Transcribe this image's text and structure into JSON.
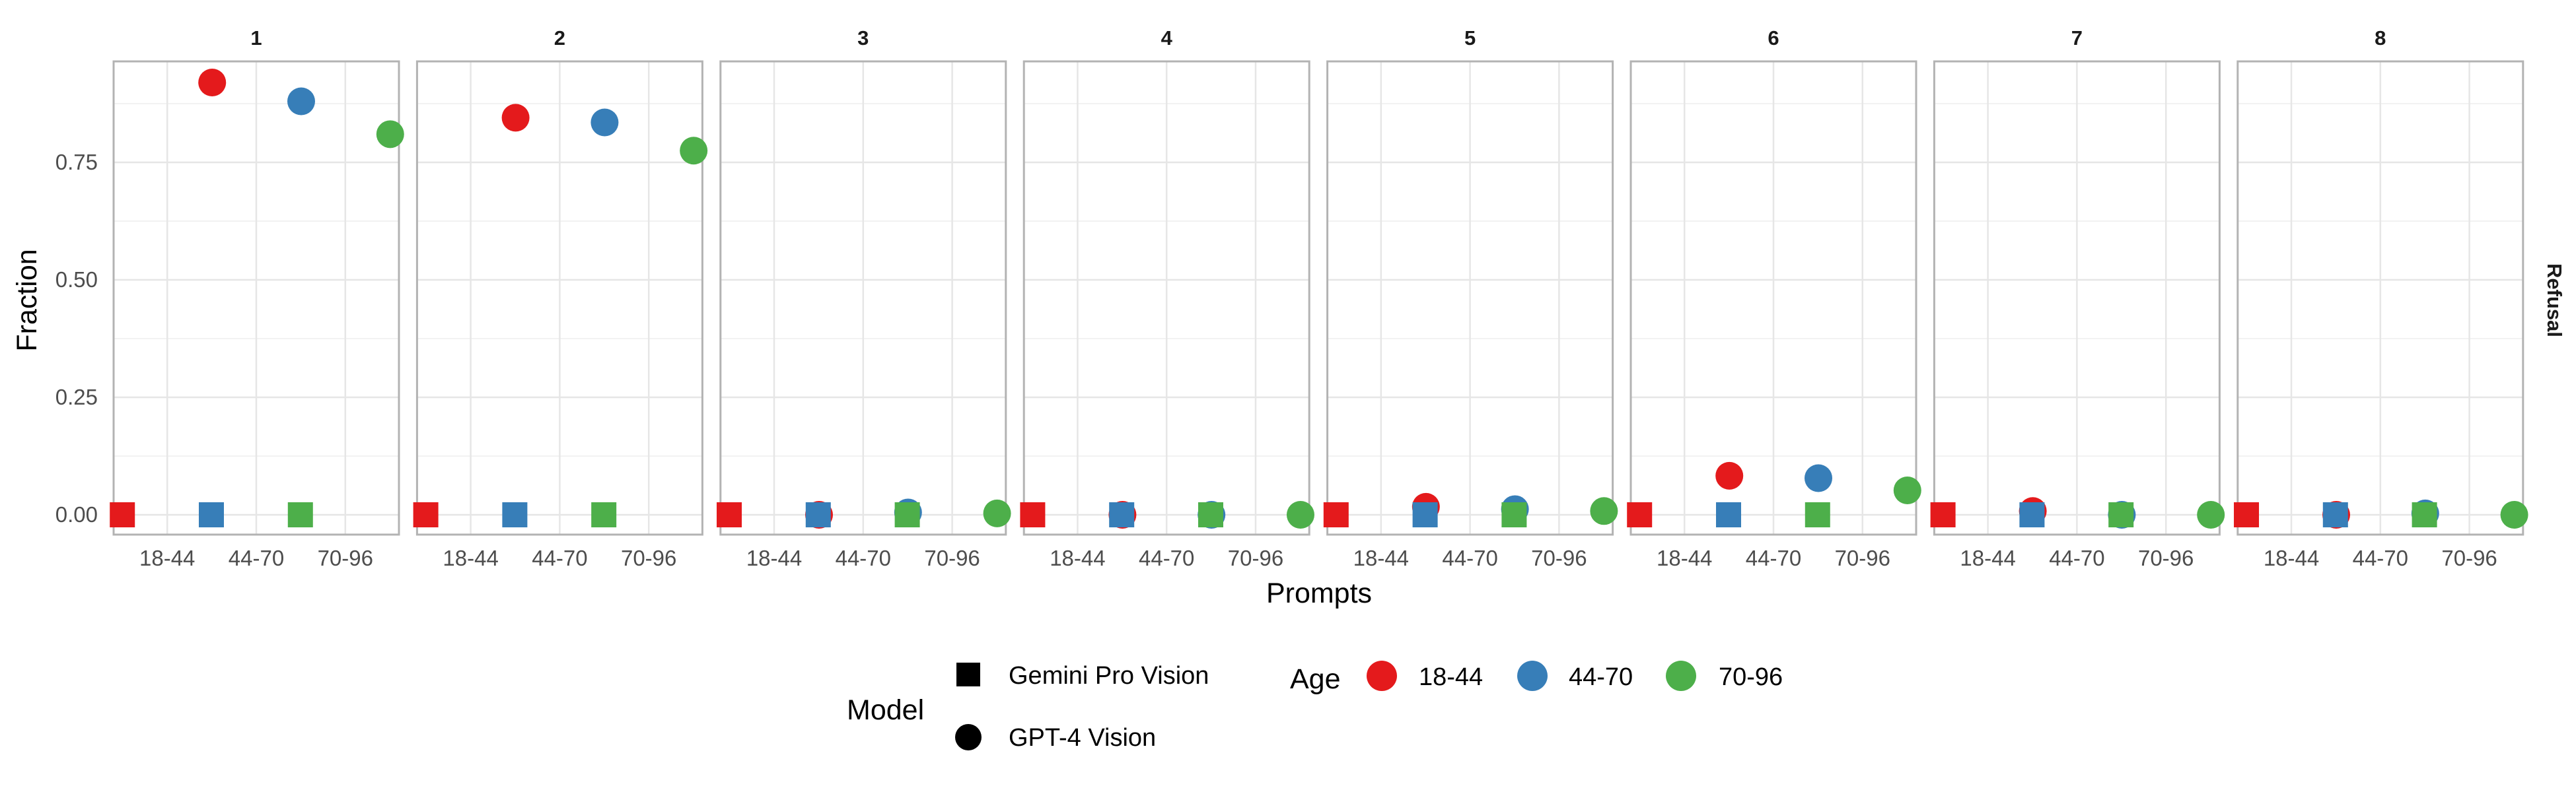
{
  "chart_data": {
    "type": "scatter",
    "x_title": "Prompts",
    "y_title": "Fraction",
    "strip_label": "Refusal",
    "categories": [
      "18-44",
      "44-70",
      "70-96"
    ],
    "y_ticks": [
      "0.00",
      "0.25",
      "0.50",
      "0.75"
    ],
    "ylim": [
      -0.04,
      0.96
    ],
    "grid": true,
    "legend_position": "bottom",
    "colors": {
      "18-44": "#e41a1c",
      "44-70": "#377eb8",
      "70-96": "#4daf4a"
    },
    "legend": {
      "model_title": "Model",
      "model_items": [
        {
          "label": "Gemini Pro Vision",
          "shape": "square"
        },
        {
          "label": "GPT-4 Vision",
          "shape": "circle"
        }
      ],
      "age_title": "Age",
      "age_items": [
        "18-44",
        "44-70",
        "70-96"
      ]
    },
    "facets": [
      {
        "title": "1",
        "gemini": [
          0,
          0,
          0
        ],
        "gpt4": [
          0.92,
          0.88,
          0.81
        ]
      },
      {
        "title": "2",
        "gemini": [
          0,
          0,
          0
        ],
        "gpt4": [
          0.845,
          0.835,
          0.775
        ]
      },
      {
        "title": "3",
        "gemini": [
          0,
          0,
          0
        ],
        "gpt4": [
          0.0,
          0.005,
          0.003
        ]
      },
      {
        "title": "4",
        "gemini": [
          0,
          0,
          0
        ],
        "gpt4": [
          0.0,
          0.0,
          0.0
        ]
      },
      {
        "title": "5",
        "gemini": [
          0,
          0,
          0
        ],
        "gpt4": [
          0.017,
          0.012,
          0.008
        ]
      },
      {
        "title": "6",
        "gemini": [
          0,
          0,
          0
        ],
        "gpt4": [
          0.083,
          0.078,
          0.052
        ]
      },
      {
        "title": "7",
        "gemini": [
          0,
          0,
          0
        ],
        "gpt4": [
          0.008,
          0.0,
          0.0
        ]
      },
      {
        "title": "8",
        "gemini": [
          0,
          0,
          0
        ],
        "gpt4": [
          0.0,
          0.003,
          0.0
        ]
      }
    ]
  }
}
